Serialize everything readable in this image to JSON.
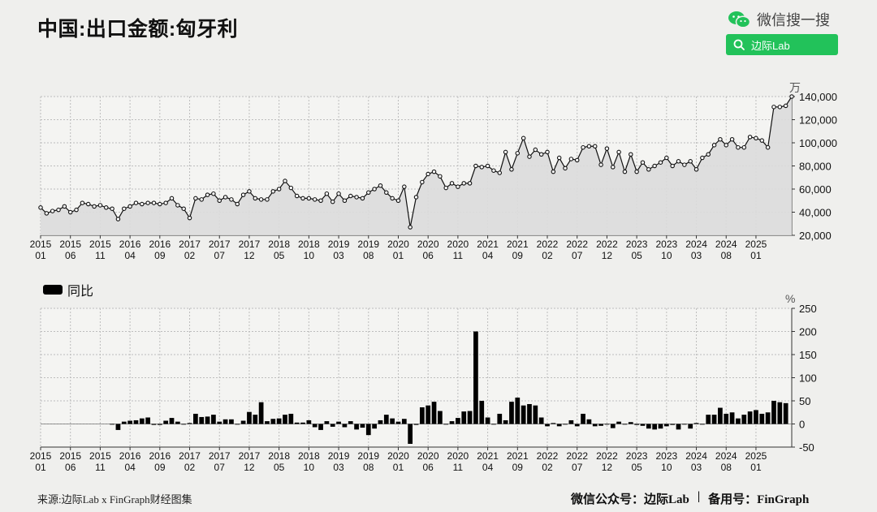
{
  "title": "中国:出口金额:匈牙利",
  "wechat": {
    "label": "微信搜一搜",
    "icon": "wechat-icon"
  },
  "search": {
    "label": "边际Lab",
    "icon": "search-icon",
    "bg": "#22c25a"
  },
  "footer": {
    "source": "来源:边际Lab x FinGraph财经图集",
    "account": "微信公众号：边际Lab",
    "separator": "|",
    "backup": "备用号：FinGraph"
  },
  "chart_data": [
    {
      "type": "line",
      "title": "",
      "ylabel": "万",
      "ylim": [
        20000,
        140000
      ],
      "yticks": [
        20000,
        40000,
        60000,
        80000,
        100000,
        120000,
        140000
      ],
      "ytick_labels": [
        "20,000",
        "40,000",
        "60,000",
        "80,000",
        "100,000",
        "120,000",
        "140,000"
      ],
      "x_start": "2015-01",
      "xtick_labels": [
        [
          "2015",
          "01"
        ],
        [
          "2015",
          "06"
        ],
        [
          "2015",
          "11"
        ],
        [
          "2016",
          "04"
        ],
        [
          "2016",
          "09"
        ],
        [
          "2017",
          "02"
        ],
        [
          "2017",
          "07"
        ],
        [
          "2017",
          "12"
        ],
        [
          "2018",
          "05"
        ],
        [
          "2018",
          "10"
        ],
        [
          "2019",
          "03"
        ],
        [
          "2019",
          "08"
        ],
        [
          "2020",
          "01"
        ],
        [
          "2020",
          "06"
        ],
        [
          "2020",
          "11"
        ],
        [
          "2021",
          "04"
        ],
        [
          "2021",
          "09"
        ],
        [
          "2022",
          "02"
        ],
        [
          "2022",
          "07"
        ],
        [
          "2022",
          "12"
        ],
        [
          "2023",
          "05"
        ],
        [
          "2023",
          "10"
        ],
        [
          "2024",
          "03"
        ],
        [
          "2024",
          "08"
        ],
        [
          "2025",
          "01"
        ]
      ],
      "grid": true,
      "colors": {
        "line": "#111111",
        "fill": "#dcdcdc",
        "marker_fill": "#ffffff"
      },
      "values": [
        44000,
        39000,
        41000,
        42000,
        45000,
        40000,
        42000,
        48000,
        47000,
        45000,
        46000,
        44000,
        43000,
        34000,
        43000,
        45000,
        48000,
        47000,
        48000,
        48000,
        47000,
        48000,
        52000,
        46000,
        43000,
        35000,
        52000,
        51000,
        55000,
        56000,
        50000,
        53000,
        51000,
        47000,
        55000,
        58000,
        52000,
        51000,
        51000,
        58000,
        60000,
        67000,
        61000,
        54000,
        52000,
        52000,
        51000,
        50000,
        56000,
        49000,
        56000,
        50000,
        54000,
        53000,
        52000,
        57000,
        60000,
        63000,
        57000,
        52000,
        50000,
        62000,
        27000,
        53000,
        66000,
        73000,
        75000,
        71000,
        61000,
        65000,
        62000,
        65000,
        65000,
        80000,
        79000,
        80000,
        76000,
        74000,
        92000,
        77000,
        91000,
        104000,
        88000,
        94000,
        90000,
        92000,
        75000,
        87000,
        78000,
        86000,
        85000,
        96000,
        97000,
        97000,
        81000,
        95000,
        79000,
        92000,
        75000,
        90000,
        75000,
        83000,
        77000,
        80000,
        83000,
        87000,
        80000,
        84000,
        81000,
        84000,
        77000,
        87000,
        90000,
        98000,
        103000,
        98000,
        103000,
        96000,
        96000,
        105000,
        104000,
        102000,
        96000,
        131000,
        131000,
        132000,
        140000
      ]
    },
    {
      "type": "bar",
      "title": "",
      "legend": "同比",
      "ylabel": "%",
      "ylim": [
        -50,
        250
      ],
      "yticks": [
        -50,
        0,
        50,
        100,
        150,
        200,
        250
      ],
      "ytick_labels": [
        "-50",
        "0",
        "50",
        "100",
        "150",
        "200",
        "250"
      ],
      "x_start": "2015-01",
      "grid": true,
      "colors": {
        "bar": "#000000"
      },
      "values": [
        null,
        null,
        null,
        null,
        null,
        null,
        null,
        null,
        null,
        null,
        null,
        null,
        0,
        -13,
        5,
        7,
        8,
        12,
        14,
        -2,
        -2,
        7,
        13,
        5,
        0,
        2,
        22,
        15,
        16,
        20,
        5,
        10,
        10,
        0,
        7,
        26,
        20,
        47,
        6,
        11,
        12,
        20,
        22,
        3,
        3,
        8,
        -7,
        -13,
        6,
        -6,
        5,
        -7,
        6,
        -12,
        -8,
        -24,
        -10,
        8,
        20,
        12,
        5,
        11,
        -43,
        -2,
        36,
        40,
        48,
        28,
        -1,
        6,
        13,
        27,
        28,
        200,
        50,
        14,
        0,
        22,
        8,
        48,
        57,
        40,
        43,
        40,
        14,
        -5,
        2,
        -5,
        0,
        8,
        -5,
        22,
        10,
        -5,
        -4,
        -1,
        -9,
        5,
        0,
        4,
        -2,
        -4,
        -10,
        -12,
        -10,
        -5,
        -2,
        -12,
        0,
        -10,
        2,
        0,
        20,
        20,
        35,
        22,
        25,
        12,
        20,
        27,
        30,
        22,
        25,
        50,
        47,
        45
      ]
    }
  ]
}
